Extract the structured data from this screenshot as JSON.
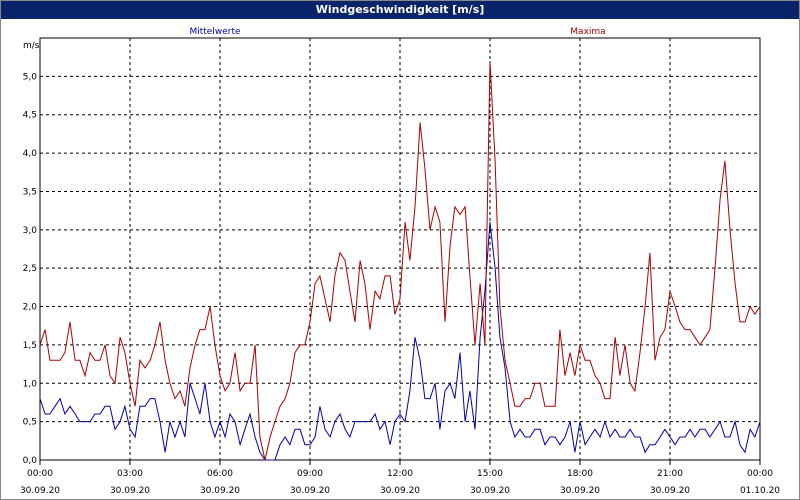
{
  "chart_data": {
    "type": "line",
    "title": "Windgeschwindigkeit [m/s]",
    "ylabel": "m/s",
    "ylim": [
      0,
      5.5
    ],
    "y_ticks": [
      "0,0",
      "0,5",
      "1,0",
      "1,5",
      "2,0",
      "2,5",
      "3,0",
      "3,5",
      "4,0",
      "4,5",
      "5,0"
    ],
    "x_range_hours": [
      0,
      24
    ],
    "x_ticks": [
      {
        "time": "00:00",
        "date": "30.09.20"
      },
      {
        "time": "03:00",
        "date": "30.09.20"
      },
      {
        "time": "06:00",
        "date": "30.09.20"
      },
      {
        "time": "09:00",
        "date": "30.09.20"
      },
      {
        "time": "12:00",
        "date": "30.09.20"
      },
      {
        "time": "15:00",
        "date": "30.09.20"
      },
      {
        "time": "18:00",
        "date": "30.09.20"
      },
      {
        "time": "21:00",
        "date": "30.09.20"
      },
      {
        "time": "00:00",
        "date": "01.10.20"
      }
    ],
    "grid": true,
    "series": [
      {
        "name": "Mittelwerte",
        "color": "#0000aa",
        "points": [
          [
            0.0,
            0.8
          ],
          [
            0.17,
            0.6
          ],
          [
            0.33,
            0.6
          ],
          [
            0.5,
            0.7
          ],
          [
            0.67,
            0.8
          ],
          [
            0.83,
            0.6
          ],
          [
            1.0,
            0.7
          ],
          [
            1.17,
            0.6
          ],
          [
            1.33,
            0.5
          ],
          [
            1.5,
            0.5
          ],
          [
            1.67,
            0.5
          ],
          [
            1.83,
            0.6
          ],
          [
            2.0,
            0.6
          ],
          [
            2.17,
            0.7
          ],
          [
            2.33,
            0.7
          ],
          [
            2.5,
            0.4
          ],
          [
            2.67,
            0.5
          ],
          [
            2.83,
            0.7
          ],
          [
            3.0,
            0.4
          ],
          [
            3.17,
            0.3
          ],
          [
            3.33,
            0.7
          ],
          [
            3.5,
            0.7
          ],
          [
            3.67,
            0.8
          ],
          [
            3.83,
            0.8
          ],
          [
            4.0,
            0.5
          ],
          [
            4.17,
            0.1
          ],
          [
            4.33,
            0.5
          ],
          [
            4.5,
            0.3
          ],
          [
            4.67,
            0.5
          ],
          [
            4.83,
            0.3
          ],
          [
            5.0,
            1.0
          ],
          [
            5.17,
            0.8
          ],
          [
            5.33,
            0.6
          ],
          [
            5.5,
            1.0
          ],
          [
            5.67,
            0.5
          ],
          [
            5.83,
            0.3
          ],
          [
            6.0,
            0.5
          ],
          [
            6.17,
            0.3
          ],
          [
            6.33,
            0.6
          ],
          [
            6.5,
            0.5
          ],
          [
            6.67,
            0.2
          ],
          [
            6.83,
            0.4
          ],
          [
            7.0,
            0.6
          ],
          [
            7.17,
            0.3
          ],
          [
            7.33,
            0.1
          ],
          [
            7.5,
            0.0
          ],
          [
            7.67,
            0.0
          ],
          [
            7.83,
            0.0
          ],
          [
            8.0,
            0.2
          ],
          [
            8.17,
            0.3
          ],
          [
            8.33,
            0.2
          ],
          [
            8.5,
            0.4
          ],
          [
            8.67,
            0.4
          ],
          [
            8.83,
            0.2
          ],
          [
            9.0,
            0.2
          ],
          [
            9.17,
            0.3
          ],
          [
            9.33,
            0.7
          ],
          [
            9.5,
            0.4
          ],
          [
            9.67,
            0.3
          ],
          [
            9.83,
            0.5
          ],
          [
            10.0,
            0.6
          ],
          [
            10.17,
            0.4
          ],
          [
            10.33,
            0.3
          ],
          [
            10.5,
            0.5
          ],
          [
            10.67,
            0.5
          ],
          [
            10.83,
            0.5
          ],
          [
            11.0,
            0.5
          ],
          [
            11.17,
            0.6
          ],
          [
            11.33,
            0.4
          ],
          [
            11.5,
            0.5
          ],
          [
            11.67,
            0.2
          ],
          [
            11.83,
            0.5
          ],
          [
            12.0,
            0.6
          ],
          [
            12.17,
            0.5
          ],
          [
            12.33,
            0.9
          ],
          [
            12.5,
            1.6
          ],
          [
            12.67,
            1.3
          ],
          [
            12.83,
            0.8
          ],
          [
            13.0,
            0.8
          ],
          [
            13.17,
            1.0
          ],
          [
            13.33,
            0.4
          ],
          [
            13.5,
            0.9
          ],
          [
            13.67,
            1.0
          ],
          [
            13.83,
            0.8
          ],
          [
            14.0,
            1.4
          ],
          [
            14.17,
            0.5
          ],
          [
            14.33,
            0.9
          ],
          [
            14.5,
            0.4
          ],
          [
            14.67,
            1.6
          ],
          [
            14.83,
            2.2
          ],
          [
            15.0,
            3.1
          ],
          [
            15.17,
            2.5
          ],
          [
            15.33,
            1.6
          ],
          [
            15.5,
            1.2
          ],
          [
            15.67,
            0.5
          ],
          [
            15.83,
            0.3
          ],
          [
            16.0,
            0.4
          ],
          [
            16.17,
            0.3
          ],
          [
            16.33,
            0.3
          ],
          [
            16.5,
            0.4
          ],
          [
            16.67,
            0.4
          ],
          [
            16.83,
            0.2
          ],
          [
            17.0,
            0.3
          ],
          [
            17.17,
            0.3
          ],
          [
            17.33,
            0.2
          ],
          [
            17.5,
            0.3
          ],
          [
            17.67,
            0.5
          ],
          [
            17.83,
            0.1
          ],
          [
            18.0,
            0.5
          ],
          [
            18.17,
            0.2
          ],
          [
            18.33,
            0.3
          ],
          [
            18.5,
            0.4
          ],
          [
            18.67,
            0.3
          ],
          [
            18.83,
            0.5
          ],
          [
            19.0,
            0.3
          ],
          [
            19.17,
            0.4
          ],
          [
            19.33,
            0.3
          ],
          [
            19.5,
            0.3
          ],
          [
            19.67,
            0.4
          ],
          [
            19.83,
            0.3
          ],
          [
            20.0,
            0.3
          ],
          [
            20.17,
            0.1
          ],
          [
            20.33,
            0.2
          ],
          [
            20.5,
            0.2
          ],
          [
            20.67,
            0.3
          ],
          [
            20.83,
            0.4
          ],
          [
            21.0,
            0.3
          ],
          [
            21.17,
            0.2
          ],
          [
            21.33,
            0.3
          ],
          [
            21.5,
            0.3
          ],
          [
            21.67,
            0.4
          ],
          [
            21.83,
            0.3
          ],
          [
            22.0,
            0.4
          ],
          [
            22.17,
            0.4
          ],
          [
            22.33,
            0.3
          ],
          [
            22.5,
            0.4
          ],
          [
            22.67,
            0.5
          ],
          [
            22.83,
            0.3
          ],
          [
            23.0,
            0.3
          ],
          [
            23.17,
            0.5
          ],
          [
            23.33,
            0.2
          ],
          [
            23.5,
            0.1
          ],
          [
            23.67,
            0.4
          ],
          [
            23.83,
            0.3
          ],
          [
            24.0,
            0.5
          ]
        ]
      },
      {
        "name": "Maxima",
        "color": "#aa0000",
        "points": [
          [
            0.0,
            1.5
          ],
          [
            0.17,
            1.7
          ],
          [
            0.33,
            1.3
          ],
          [
            0.5,
            1.3
          ],
          [
            0.67,
            1.3
          ],
          [
            0.83,
            1.4
          ],
          [
            1.0,
            1.8
          ],
          [
            1.17,
            1.3
          ],
          [
            1.33,
            1.3
          ],
          [
            1.5,
            1.1
          ],
          [
            1.67,
            1.4
          ],
          [
            1.83,
            1.3
          ],
          [
            2.0,
            1.3
          ],
          [
            2.17,
            1.5
          ],
          [
            2.33,
            1.1
          ],
          [
            2.5,
            1.0
          ],
          [
            2.67,
            1.6
          ],
          [
            2.83,
            1.4
          ],
          [
            3.0,
            1.0
          ],
          [
            3.17,
            0.7
          ],
          [
            3.33,
            1.3
          ],
          [
            3.5,
            1.2
          ],
          [
            3.67,
            1.3
          ],
          [
            3.83,
            1.5
          ],
          [
            4.0,
            1.8
          ],
          [
            4.17,
            1.3
          ],
          [
            4.33,
            1.0
          ],
          [
            4.5,
            0.8
          ],
          [
            4.67,
            0.9
          ],
          [
            4.83,
            0.7
          ],
          [
            5.0,
            1.2
          ],
          [
            5.17,
            1.5
          ],
          [
            5.33,
            1.7
          ],
          [
            5.5,
            1.7
          ],
          [
            5.67,
            2.0
          ],
          [
            5.83,
            1.5
          ],
          [
            6.0,
            1.1
          ],
          [
            6.17,
            0.9
          ],
          [
            6.33,
            1.0
          ],
          [
            6.5,
            1.4
          ],
          [
            6.67,
            0.9
          ],
          [
            6.83,
            1.0
          ],
          [
            7.0,
            1.0
          ],
          [
            7.17,
            1.5
          ],
          [
            7.33,
            0.3
          ],
          [
            7.5,
            0.0
          ],
          [
            7.67,
            0.3
          ],
          [
            7.83,
            0.5
          ],
          [
            8.0,
            0.7
          ],
          [
            8.17,
            0.8
          ],
          [
            8.33,
            1.0
          ],
          [
            8.5,
            1.4
          ],
          [
            8.67,
            1.5
          ],
          [
            8.83,
            1.5
          ],
          [
            9.0,
            1.8
          ],
          [
            9.17,
            2.3
          ],
          [
            9.33,
            2.4
          ],
          [
            9.5,
            2.1
          ],
          [
            9.67,
            1.8
          ],
          [
            9.83,
            2.4
          ],
          [
            10.0,
            2.7
          ],
          [
            10.17,
            2.6
          ],
          [
            10.33,
            2.2
          ],
          [
            10.5,
            1.8
          ],
          [
            10.67,
            2.6
          ],
          [
            10.83,
            2.3
          ],
          [
            11.0,
            1.7
          ],
          [
            11.17,
            2.2
          ],
          [
            11.33,
            2.1
          ],
          [
            11.5,
            2.4
          ],
          [
            11.67,
            2.4
          ],
          [
            11.83,
            1.9
          ],
          [
            12.0,
            2.1
          ],
          [
            12.17,
            3.1
          ],
          [
            12.33,
            2.6
          ],
          [
            12.5,
            3.3
          ],
          [
            12.67,
            4.4
          ],
          [
            12.83,
            3.8
          ],
          [
            13.0,
            3.0
          ],
          [
            13.17,
            3.3
          ],
          [
            13.33,
            3.1
          ],
          [
            13.5,
            1.8
          ],
          [
            13.67,
            2.8
          ],
          [
            13.83,
            3.3
          ],
          [
            14.0,
            3.2
          ],
          [
            14.17,
            3.3
          ],
          [
            14.33,
            2.4
          ],
          [
            14.5,
            1.5
          ],
          [
            14.67,
            2.3
          ],
          [
            14.83,
            1.5
          ],
          [
            15.0,
            5.2
          ],
          [
            15.17,
            3.9
          ],
          [
            15.33,
            2.0
          ],
          [
            15.5,
            1.3
          ],
          [
            15.67,
            1.0
          ],
          [
            15.83,
            0.7
          ],
          [
            16.0,
            0.7
          ],
          [
            16.17,
            0.8
          ],
          [
            16.33,
            0.8
          ],
          [
            16.5,
            1.0
          ],
          [
            16.67,
            1.0
          ],
          [
            16.83,
            0.7
          ],
          [
            17.0,
            0.7
          ],
          [
            17.17,
            0.7
          ],
          [
            17.33,
            1.7
          ],
          [
            17.5,
            1.1
          ],
          [
            17.67,
            1.4
          ],
          [
            17.83,
            1.1
          ],
          [
            18.0,
            1.5
          ],
          [
            18.17,
            1.3
          ],
          [
            18.33,
            1.3
          ],
          [
            18.5,
            1.1
          ],
          [
            18.67,
            1.0
          ],
          [
            18.83,
            0.8
          ],
          [
            19.0,
            0.8
          ],
          [
            19.17,
            1.6
          ],
          [
            19.33,
            1.1
          ],
          [
            19.5,
            1.5
          ],
          [
            19.67,
            1.0
          ],
          [
            19.83,
            0.9
          ],
          [
            20.0,
            1.4
          ],
          [
            20.17,
            2.0
          ],
          [
            20.33,
            2.7
          ],
          [
            20.5,
            1.3
          ],
          [
            20.67,
            1.6
          ],
          [
            20.83,
            1.7
          ],
          [
            21.0,
            2.2
          ],
          [
            21.17,
            2.0
          ],
          [
            21.33,
            1.8
          ],
          [
            21.5,
            1.7
          ],
          [
            21.67,
            1.7
          ],
          [
            21.83,
            1.6
          ],
          [
            22.0,
            1.5
          ],
          [
            22.17,
            1.6
          ],
          [
            22.33,
            1.7
          ],
          [
            22.5,
            2.5
          ],
          [
            22.67,
            3.4
          ],
          [
            22.83,
            3.9
          ],
          [
            23.0,
            3.0
          ],
          [
            23.17,
            2.3
          ],
          [
            23.33,
            1.8
          ],
          [
            23.5,
            1.8
          ],
          [
            23.67,
            2.0
          ],
          [
            23.83,
            1.9
          ],
          [
            24.0,
            2.0
          ]
        ]
      }
    ]
  }
}
